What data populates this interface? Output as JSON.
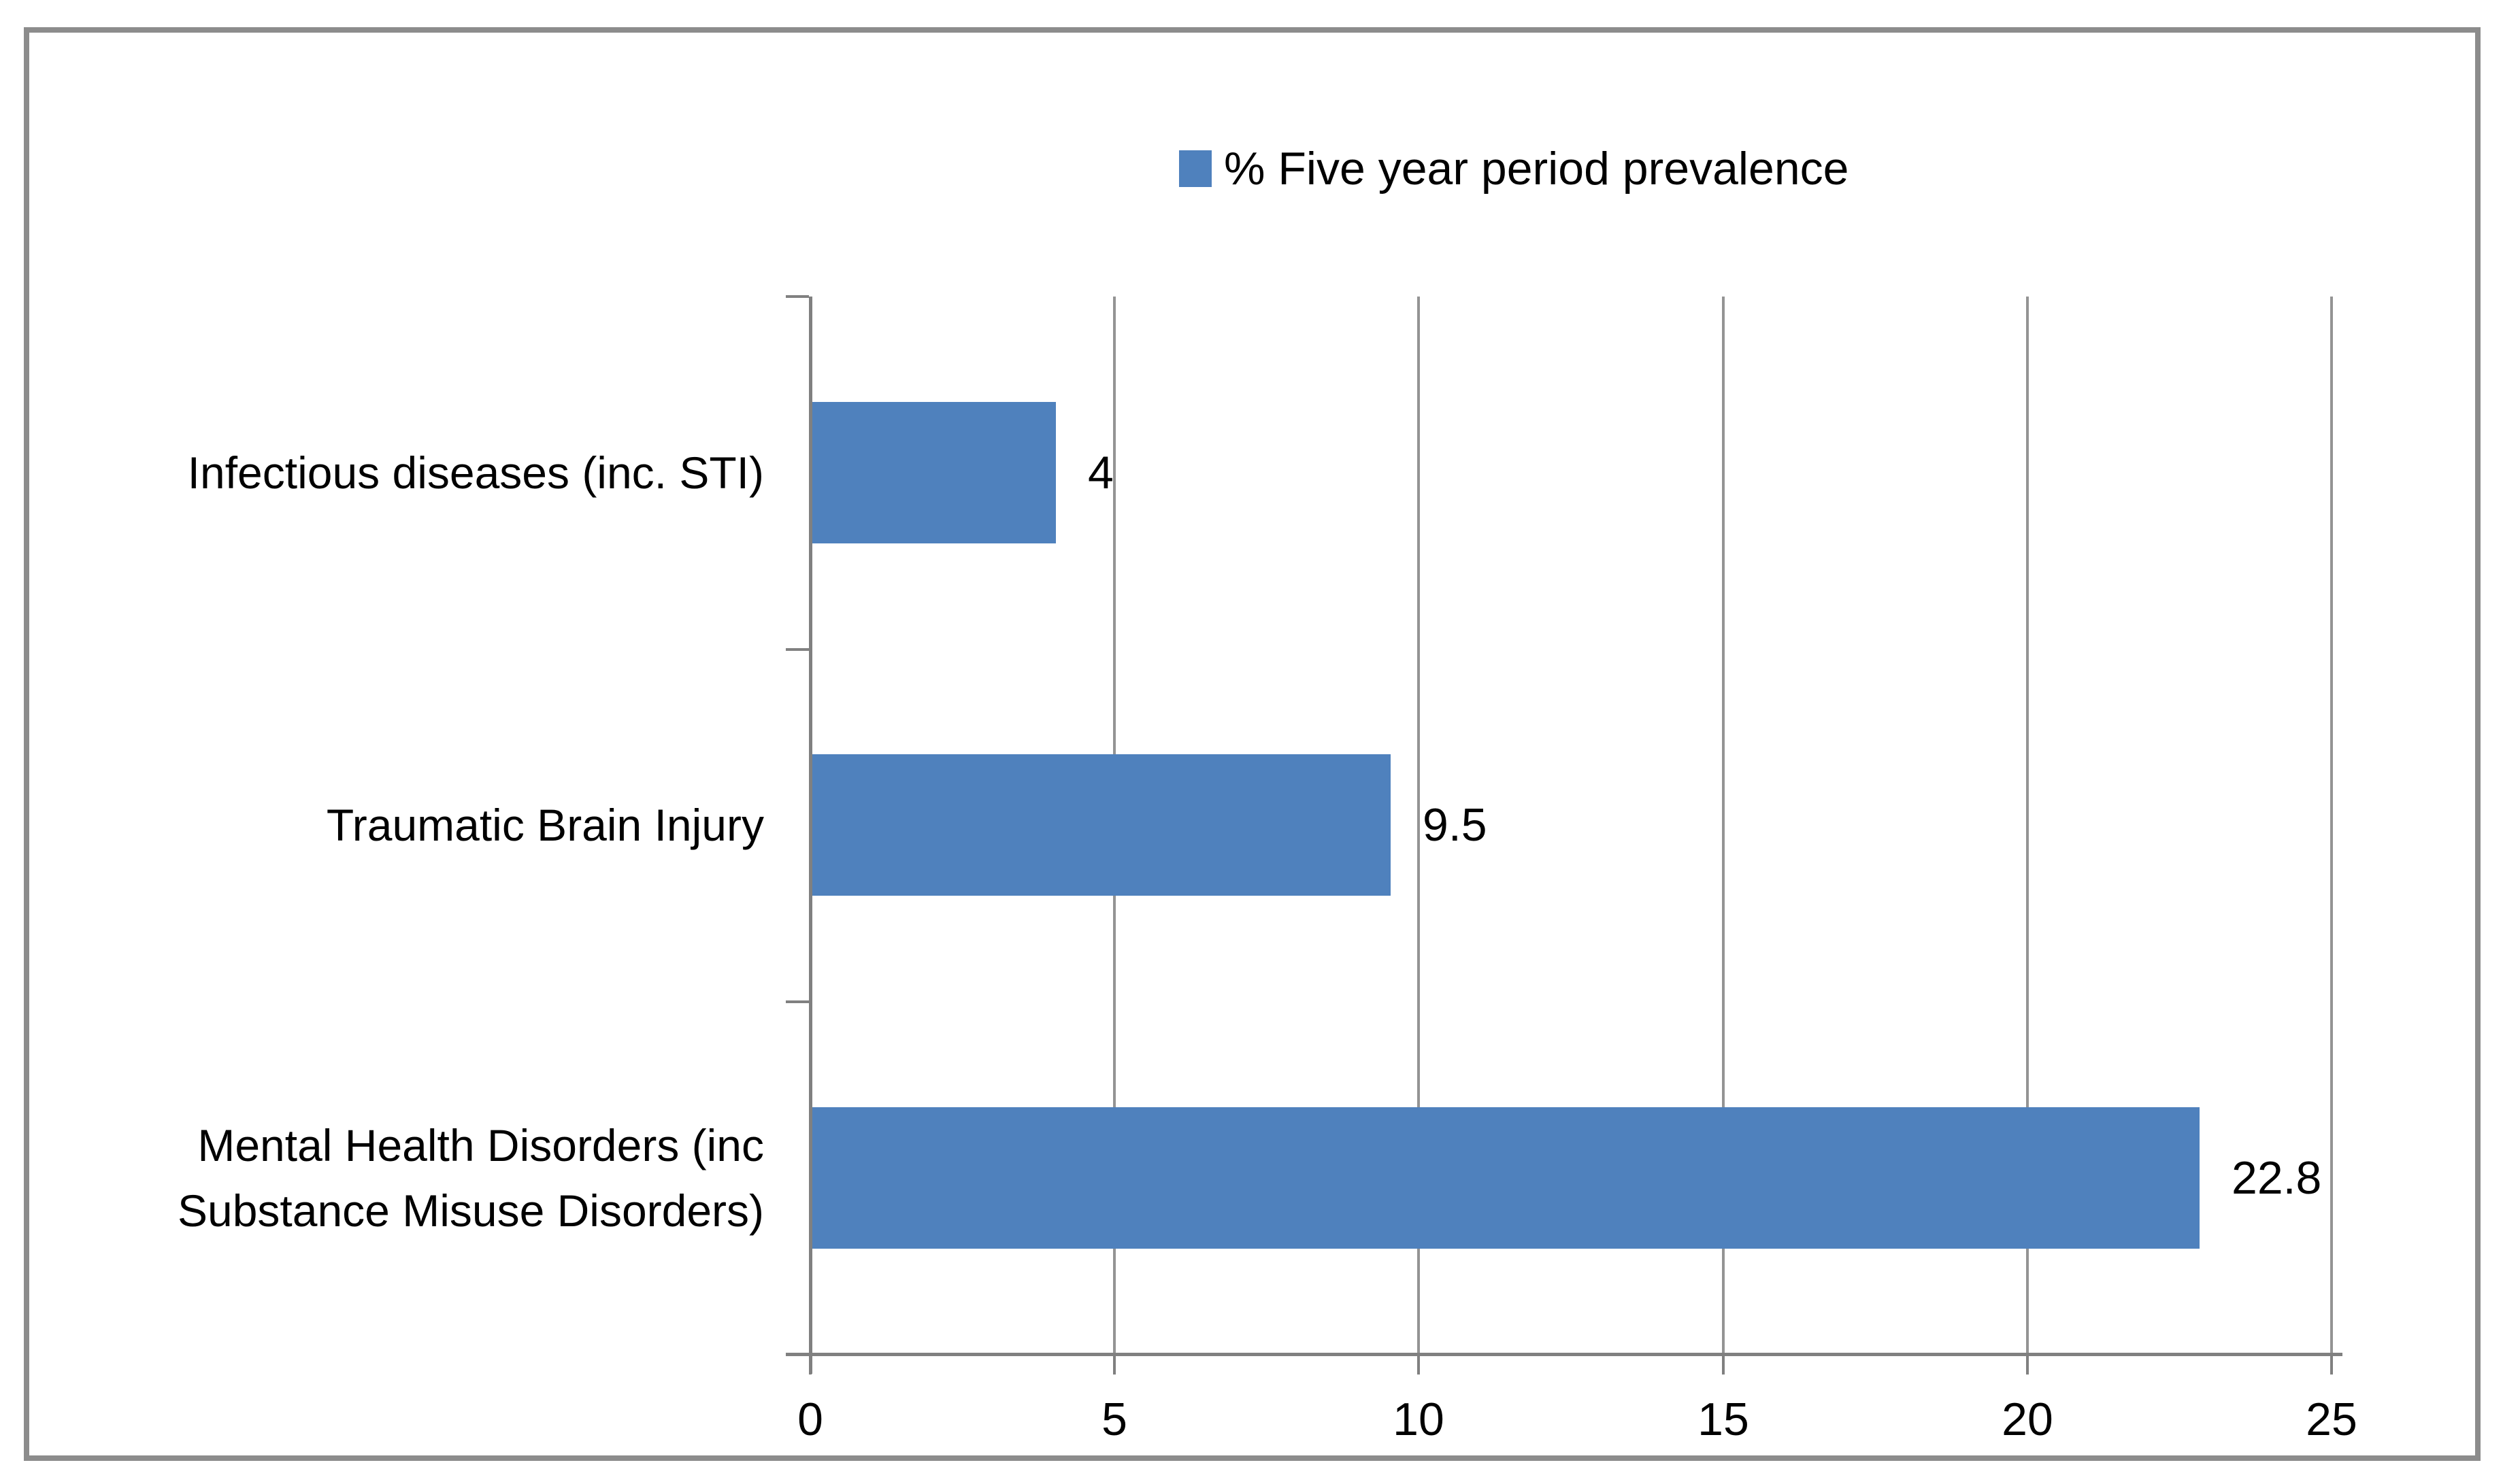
{
  "figure": {
    "background_color": "#ffffff",
    "border_color": "#8c8c8c"
  },
  "legend": {
    "label": "% Five year period prevalence",
    "marker": "blue-square",
    "marker_color": "#4F81BD",
    "position": "top"
  },
  "chart_data": {
    "type": "bar",
    "orientation": "horizontal",
    "title": "",
    "xlabel": "",
    "ylabel": "",
    "categories": [
      "Infectious diseases (inc. STI)",
      "Traumatic Brain Injury",
      "Mental Health Disorders (inc Substance Misuse Disorders)"
    ],
    "series": [
      {
        "name": "% Five year period prevalence",
        "values": [
          4,
          9.5,
          22.8
        ]
      }
    ],
    "values": [
      4,
      9.5,
      22.8
    ],
    "data_labels": [
      "4",
      "9.5",
      "22.8"
    ],
    "x_ticks": [
      "0",
      "5",
      "10",
      "15",
      "20",
      "25"
    ],
    "x_tick_values": [
      0,
      5,
      10,
      15,
      20,
      25
    ],
    "xlim": [
      0,
      25
    ],
    "grid": true,
    "gridline_color": "#949494",
    "bar_color": "#4F81BD",
    "legend_position": "top"
  }
}
